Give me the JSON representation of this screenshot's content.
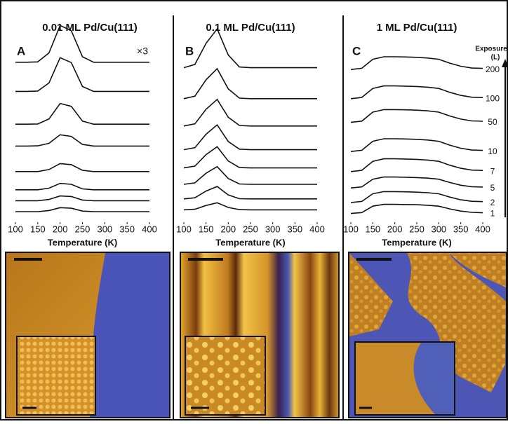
{
  "chart_data": [
    {
      "type": "line",
      "title": "0.01 ML Pd/Cu(111)",
      "label": "A",
      "annotation": "×3",
      "xlabel": "Temperature (K)",
      "x": [
        100,
        125,
        150,
        175,
        200,
        225,
        250,
        275,
        300,
        325,
        350,
        375,
        400
      ],
      "xlim": [
        100,
        400
      ],
      "xticks": [
        100,
        150,
        200,
        250,
        300,
        350,
        400
      ],
      "ylim": [
        0,
        100
      ],
      "series": [
        {
          "color": "#111",
          "values": [
            87,
            87,
            87.2,
            92.1,
            107.2,
            104.3,
            90,
            87,
            87,
            87,
            87,
            87,
            87
          ]
        },
        {
          "color": "#111",
          "values": [
            71,
            71,
            71.2,
            75.6,
            89.5,
            86.8,
            73.7,
            71,
            71,
            71,
            71,
            71,
            71
          ]
        },
        {
          "color": "#111",
          "values": [
            53,
            53,
            53.1,
            55.9,
            64.4,
            62.8,
            54.7,
            53,
            53,
            53,
            53,
            53,
            53
          ]
        },
        {
          "color": "#111",
          "values": [
            41,
            41,
            41.1,
            42.5,
            47.2,
            46.3,
            41.9,
            41,
            41,
            41,
            41,
            41,
            41
          ]
        },
        {
          "color": "#111",
          "values": [
            27,
            27,
            27,
            28.1,
            31.4,
            30.8,
            27.7,
            27,
            27,
            27,
            27,
            27,
            27
          ]
        },
        {
          "color": "#111",
          "values": [
            17,
            17,
            17,
            17.9,
            20.5,
            20,
            17.5,
            17,
            17,
            17,
            17,
            17,
            17
          ]
        },
        {
          "color": "#111",
          "values": [
            11,
            11,
            11,
            11.7,
            13.6,
            13.3,
            11.4,
            11,
            11,
            11,
            11,
            11,
            11
          ]
        },
        {
          "color": "#111",
          "values": [
            5,
            5,
            5,
            5.6,
            7.2,
            6.9,
            5.3,
            5,
            5,
            5,
            5,
            5,
            5
          ]
        }
      ]
    },
    {
      "type": "line",
      "title": "0.1 ML Pd/Cu(111)",
      "label": "B",
      "xlabel": "Temperature (K)",
      "x": [
        100,
        125,
        150,
        175,
        200,
        225,
        250,
        275,
        300,
        325,
        350,
        375,
        400
      ],
      "xlim": [
        100,
        400
      ],
      "xticks": [
        100,
        150,
        200,
        250,
        300,
        350,
        400
      ],
      "ylim": [
        0,
        100
      ],
      "series": [
        {
          "color": "#111",
          "values": [
            84,
            85.8,
            97.4,
            105.3,
            91,
            84.4,
            84,
            84,
            84,
            84,
            84,
            84,
            84
          ]
        },
        {
          "color": "#111",
          "values": [
            67,
            68.4,
            77.4,
            83.5,
            72.4,
            67.3,
            67,
            67,
            67,
            67,
            67,
            67,
            67
          ]
        },
        {
          "color": "#111",
          "values": [
            52,
            53.2,
            61.2,
            66.6,
            56.8,
            52.3,
            52,
            52,
            52,
            52,
            52,
            52,
            52
          ]
        },
        {
          "color": "#111",
          "values": [
            39,
            40.1,
            47.5,
            52.6,
            43.5,
            39.3,
            39,
            39,
            39,
            39,
            39,
            39,
            39
          ]
        },
        {
          "color": "#111",
          "values": [
            29,
            30,
            36.3,
            40.6,
            32.8,
            29.2,
            29,
            29,
            29,
            29,
            29,
            29,
            29
          ]
        },
        {
          "color": "#111",
          "values": [
            20,
            20.8,
            26.1,
            29.7,
            23.2,
            20.2,
            20,
            20,
            20,
            20,
            20,
            20,
            20
          ]
        },
        {
          "color": "#111",
          "values": [
            12,
            12.6,
            16.3,
            18.8,
            14.2,
            12.1,
            12,
            12,
            12,
            12,
            12,
            12,
            12
          ]
        },
        {
          "color": "#111",
          "values": [
            6,
            6.3,
            8.4,
            9.9,
            7.3,
            6.1,
            6,
            6,
            6,
            6,
            6,
            6,
            6
          ]
        }
      ]
    },
    {
      "type": "line",
      "title": "1 ML Pd/Cu(111)",
      "label": "C",
      "xlabel": "Temperature (K)",
      "x": [
        100,
        125,
        150,
        175,
        200,
        225,
        250,
        275,
        300,
        325,
        350,
        375,
        400
      ],
      "xlim": [
        100,
        400
      ],
      "xticks": [
        100,
        150,
        200,
        250,
        300,
        350,
        400
      ],
      "ylim": [
        0,
        100
      ],
      "series": [
        {
          "color": "#111",
          "values": [
            83,
            83.7,
            88.6,
            90,
            90,
            89.9,
            89.7,
            89.3,
            88.6,
            86.5,
            84.8,
            83.8,
            83.6
          ]
        },
        {
          "color": "#111",
          "values": [
            67,
            67.7,
            72.6,
            74,
            74,
            73.9,
            73.7,
            73.3,
            72.6,
            70.5,
            68.8,
            67.8,
            67.6
          ]
        },
        {
          "color": "#111",
          "values": [
            54,
            54.7,
            59.6,
            61,
            61,
            60.9,
            60.7,
            60.3,
            59.6,
            57.5,
            55.8,
            54.8,
            54.6
          ]
        },
        {
          "color": "#111",
          "values": [
            38,
            38.7,
            43.6,
            45,
            45,
            44.9,
            44.7,
            44.3,
            43.6,
            41.5,
            39.8,
            38.8,
            38.6
          ]
        },
        {
          "color": "#111",
          "values": [
            27,
            27.7,
            32.6,
            34,
            34,
            33.9,
            33.7,
            33.3,
            32.6,
            30.5,
            28.8,
            27.8,
            27.6
          ]
        },
        {
          "color": "#111",
          "values": [
            18,
            18.6,
            22.8,
            24,
            24,
            23.9,
            23.7,
            23.4,
            22.8,
            21,
            19.5,
            18.7,
            18.5
          ]
        },
        {
          "color": "#111",
          "values": [
            10,
            10.6,
            14.8,
            16,
            16,
            15.9,
            15.7,
            15.4,
            14.8,
            13,
            11.5,
            10.7,
            10.5
          ]
        },
        {
          "color": "#111",
          "values": [
            4,
            4.5,
            8,
            9,
            9,
            8.9,
            8.8,
            8.5,
            8,
            6.5,
            5.3,
            4.6,
            4.4
          ]
        }
      ]
    }
  ],
  "exposure": {
    "title": "Exposure",
    "unit": "(L)",
    "values": [
      200,
      100,
      50,
      10,
      7,
      5,
      2,
      1
    ]
  }
}
